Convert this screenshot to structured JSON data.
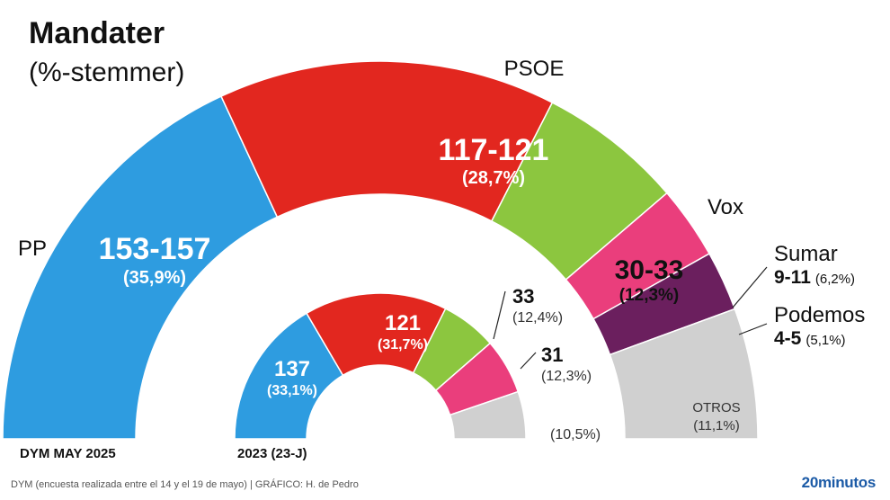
{
  "title": "Mandater",
  "subtitle": "(%-stemmer)",
  "footer": {
    "source": "DYM (encuesta realizada entre el 14 y el 19 de mayo)   |  GRÁFICO: H. de Pedro",
    "brand": "20minutos"
  },
  "rings": {
    "outer_label": "DYM MAY 2025",
    "inner_label": "2023 (23-J)"
  },
  "colors": {
    "PP": "#2e9ce0",
    "PSOE": "#e2271f",
    "Vox": "#8cc63f",
    "Sumar": "#ea3e7c",
    "Podemos": "#6b1f5e",
    "Otros": "#d0d0d0"
  },
  "chart_data": [
    {
      "type": "pie",
      "name": "DYM MAY 2025",
      "series": [
        {
          "party": "PP",
          "seats": "153-157",
          "pct": "(35,9%)",
          "value": 35.9
        },
        {
          "party": "PSOE",
          "seats": "117-121",
          "pct": "(28,7%)",
          "value": 28.7
        },
        {
          "party": "Vox",
          "seats": "30-33",
          "pct": "(12,3%)",
          "value": 12.3
        },
        {
          "party": "Sumar",
          "seats": "9-11",
          "pct": "(6,2%)",
          "value": 6.2
        },
        {
          "party": "Podemos",
          "seats": "4-5",
          "pct": "(5,1%)",
          "value": 5.1
        },
        {
          "party": "OTROS",
          "seats": "",
          "pct": "(11,1%)",
          "value": 11.1
        }
      ]
    },
    {
      "type": "pie",
      "name": "2023 (23-J)",
      "series": [
        {
          "party": "PP",
          "seats": "137",
          "pct": "(33,1%)",
          "value": 33.1
        },
        {
          "party": "PSOE",
          "seats": "121",
          "pct": "(31,7%)",
          "value": 31.7
        },
        {
          "party": "Vox",
          "seats": "33",
          "pct": "(12,4%)",
          "value": 12.4
        },
        {
          "party": "Sumar",
          "seats": "31",
          "pct": "(12,3%)",
          "value": 12.3
        },
        {
          "party": "Otros",
          "seats": "",
          "pct": "(10,5%)",
          "value": 10.5
        }
      ]
    }
  ],
  "party_labels": {
    "PP": "PP",
    "PSOE": "PSOE",
    "Vox": "Vox",
    "Sumar": "Sumar",
    "Podemos": "Podemos"
  }
}
